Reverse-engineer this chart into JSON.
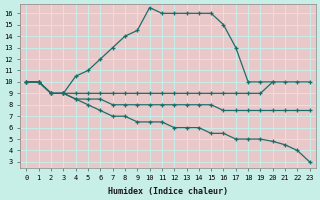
{
  "xlabel": "Humidex (Indice chaleur)",
  "outer_bg": "#c8eee8",
  "plot_bg": "#e8c8c8",
  "grid_color": "#c8eee8",
  "line_color": "#1a6e6a",
  "xlim": [
    -0.5,
    23.5
  ],
  "ylim": [
    2.5,
    16.8
  ],
  "xticks": [
    0,
    1,
    2,
    3,
    4,
    5,
    6,
    7,
    8,
    9,
    10,
    11,
    12,
    13,
    14,
    15,
    16,
    17,
    18,
    19,
    20,
    21,
    22,
    23
  ],
  "yticks": [
    3,
    4,
    5,
    6,
    7,
    8,
    9,
    10,
    11,
    12,
    13,
    14,
    15,
    16
  ],
  "lines": [
    {
      "x": [
        0,
        1,
        2,
        3,
        4,
        5,
        6,
        7,
        8,
        9,
        10,
        11,
        12,
        13,
        14,
        15,
        16,
        17,
        18,
        19,
        20
      ],
      "y": [
        10,
        10,
        9,
        9,
        10.5,
        11,
        12,
        13,
        14,
        14.5,
        16.5,
        16,
        16,
        16,
        16,
        16,
        15,
        13,
        10,
        10,
        10
      ]
    },
    {
      "x": [
        0,
        1,
        2,
        3,
        4,
        5,
        6,
        7,
        8,
        9,
        10,
        11,
        12,
        13,
        14,
        15,
        16,
        17,
        18,
        19,
        20,
        21,
        22,
        23
      ],
      "y": [
        10,
        10,
        9,
        9,
        9,
        9,
        9,
        9,
        9,
        9,
        9,
        9,
        9,
        9,
        9,
        9,
        9,
        9,
        9,
        9,
        10,
        10,
        10,
        10
      ]
    },
    {
      "x": [
        0,
        1,
        2,
        3,
        4,
        5,
        6,
        7,
        8,
        9,
        10,
        11,
        12,
        13,
        14,
        15,
        16,
        17,
        18,
        19,
        20,
        21,
        22,
        23
      ],
      "y": [
        10,
        10,
        9,
        9,
        8.5,
        8.5,
        8.5,
        8,
        8,
        8,
        8,
        8,
        8,
        8,
        8,
        8,
        7.5,
        7.5,
        7.5,
        7.5,
        7.5,
        7.5,
        7.5,
        7.5
      ]
    },
    {
      "x": [
        0,
        1,
        2,
        3,
        4,
        5,
        6,
        7,
        8,
        9,
        10,
        11,
        12,
        13,
        14,
        15,
        16,
        17,
        18,
        19,
        20,
        21,
        22,
        23
      ],
      "y": [
        10,
        10,
        9,
        9,
        8.5,
        8,
        7.5,
        7,
        7,
        6.5,
        6.5,
        6.5,
        6,
        6,
        6,
        5.5,
        5.5,
        5,
        5,
        5,
        4.8,
        4.5,
        4,
        3
      ]
    }
  ]
}
